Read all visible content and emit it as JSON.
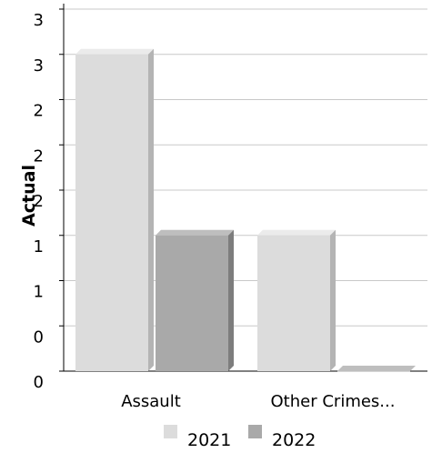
{
  "chart_data": {
    "type": "bar",
    "ylabel": "Actual",
    "categories": [
      "Assault",
      "Other Crimes..."
    ],
    "series": [
      {
        "name": "2021",
        "values": [
          3.5,
          1.5
        ],
        "color": "#dcdcdc",
        "side": "#b4b4b4",
        "top": "#ebebeb"
      },
      {
        "name": "2022",
        "values": [
          1.5,
          0
        ],
        "color": "#a9a9a9",
        "side": "#7d7d7d",
        "top": "#bebebe"
      }
    ],
    "ylim": [
      0,
      4
    ],
    "y_tick_labels": [
      "0",
      "0",
      "1",
      "1",
      "2",
      "2",
      "2",
      "3",
      "3"
    ],
    "grid": true,
    "legend": "bottom"
  }
}
